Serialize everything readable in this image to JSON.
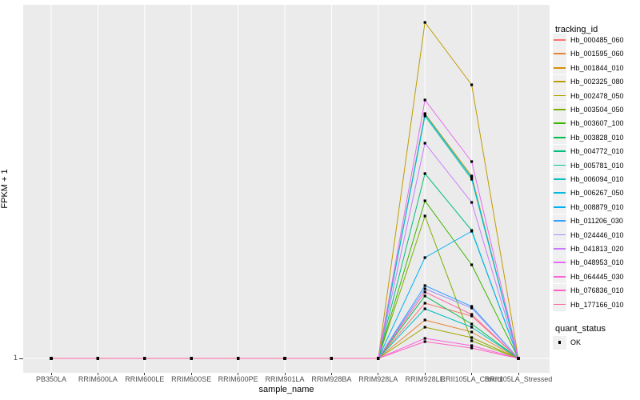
{
  "figure": {
    "y_axis_title": "FPKM + 1",
    "x_axis_title": "sample_name",
    "y_tick_labels": [
      "1"
    ]
  },
  "legend_tracking": {
    "title": "tracking_id"
  },
  "legend_quant": {
    "title": "quant_status",
    "items": [
      {
        "label": "OK",
        "marker": "black-square"
      }
    ]
  },
  "colors": {
    "panel_background": "#EBEBEB",
    "gridline": "#FFFFFF",
    "marker": "#000000",
    "legend_key_background": "#F0F0F0",
    "tick_text": "#4D4D4D"
  },
  "chart_data": {
    "type": "line",
    "title": "",
    "xlabel": "sample_name",
    "ylabel": "FPKM + 1",
    "x_categories": [
      "PB350LA",
      "RRIM600LA",
      "RRIM600LE",
      "RRIM600SE",
      "RRIM600PE",
      "RRIM901LA",
      "RRIM928BA",
      "RRIM928LA",
      "RRIM928LE",
      "RRII105LA_Control",
      "RRII105LA_Stressed"
    ],
    "y_tick_labels": [
      "1"
    ],
    "value_units": "relative FPKM+1 (axis shows only the value 1; spike heights estimated from plot, baseline = 1)",
    "grid": "white major gridlines on gray panel",
    "legend_position": "right",
    "marker": "small black square at every data point (quant_status OK)",
    "series": [
      {
        "name": "Hb_000485_060",
        "color": "#F8766D",
        "values": [
          1,
          1,
          1,
          1,
          1,
          1,
          1,
          1,
          70,
          54,
          1
        ]
      },
      {
        "name": "Hb_001595_060",
        "color": "#EA8331",
        "values": [
          1,
          1,
          1,
          1,
          1,
          1,
          1,
          1,
          49,
          34,
          1
        ]
      },
      {
        "name": "Hb_001844_010",
        "color": "#D89000",
        "values": [
          1,
          1,
          1,
          1,
          1,
          1,
          1,
          1,
          307,
          229,
          1
        ]
      },
      {
        "name": "Hb_002325_080",
        "color": "#C09B00",
        "values": [
          1,
          1,
          1,
          1,
          1,
          1,
          1,
          1,
          421,
          343,
          1
        ]
      },
      {
        "name": "Hb_002478_050",
        "color": "#A3A500",
        "values": [
          1,
          1,
          1,
          1,
          1,
          1,
          1,
          1,
          40,
          27,
          1
        ]
      },
      {
        "name": "Hb_003504_050",
        "color": "#7CAE00",
        "values": [
          1,
          1,
          1,
          1,
          1,
          1,
          1,
          1,
          179,
          23,
          1
        ]
      },
      {
        "name": "Hb_003607_100",
        "color": "#39B600",
        "values": [
          1,
          1,
          1,
          1,
          1,
          1,
          1,
          1,
          198,
          118,
          1
        ]
      },
      {
        "name": "Hb_003828_010",
        "color": "#00BB4E",
        "values": [
          1,
          1,
          1,
          1,
          1,
          1,
          1,
          1,
          79,
          44,
          1
        ]
      },
      {
        "name": "Hb_004772_010",
        "color": "#00BF7D",
        "values": [
          1,
          1,
          1,
          1,
          1,
          1,
          1,
          1,
          232,
          161,
          1
        ]
      },
      {
        "name": "Hb_005781_010",
        "color": "#00C1A3",
        "values": [
          1,
          1,
          1,
          1,
          1,
          1,
          1,
          1,
          304,
          225,
          1
        ]
      },
      {
        "name": "Hb_006094_010",
        "color": "#00BFC4",
        "values": [
          1,
          1,
          1,
          1,
          1,
          1,
          1,
          1,
          63,
          40,
          1
        ]
      },
      {
        "name": "Hb_006267_050",
        "color": "#00BAE0",
        "values": [
          1,
          1,
          1,
          1,
          1,
          1,
          1,
          1,
          306,
          227,
          1
        ]
      },
      {
        "name": "Hb_008879_010",
        "color": "#00B0F6",
        "values": [
          1,
          1,
          1,
          1,
          1,
          1,
          1,
          1,
          127,
          160,
          1
        ]
      },
      {
        "name": "Hb_011206_030",
        "color": "#35A2FF",
        "values": [
          1,
          1,
          1,
          1,
          1,
          1,
          1,
          1,
          92,
          66,
          1
        ]
      },
      {
        "name": "Hb_024446_010",
        "color": "#9590FF",
        "values": [
          1,
          1,
          1,
          1,
          1,
          1,
          1,
          1,
          88,
          64,
          1
        ]
      },
      {
        "name": "Hb_041813_020",
        "color": "#C77CFF",
        "values": [
          1,
          1,
          1,
          1,
          1,
          1,
          1,
          1,
          270,
          196,
          1
        ]
      },
      {
        "name": "Hb_048953_010",
        "color": "#E76BF3",
        "values": [
          1,
          1,
          1,
          1,
          1,
          1,
          1,
          1,
          324,
          247,
          1
        ]
      },
      {
        "name": "Hb_064445_030",
        "color": "#FA62DB",
        "values": [
          1,
          1,
          1,
          1,
          1,
          1,
          1,
          1,
          26,
          17,
          1
        ]
      },
      {
        "name": "Hb_076836_010",
        "color": "#FF61C3",
        "values": [
          1,
          1,
          1,
          1,
          1,
          1,
          1,
          1,
          22,
          14,
          1
        ]
      },
      {
        "name": "Hb_177166_010",
        "color": "#FF67A4",
        "values": [
          1,
          1,
          1,
          1,
          1,
          1,
          1,
          1,
          84,
          56,
          1
        ]
      }
    ]
  }
}
